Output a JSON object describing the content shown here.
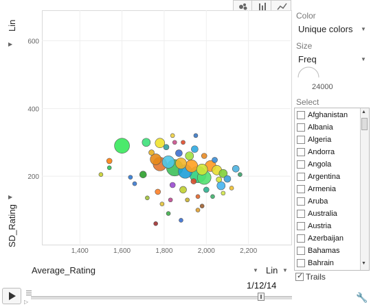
{
  "top_controls": {
    "y_scale": "Lin",
    "x_metric": "Average_Rating",
    "x_scale": "Lin",
    "y_metric": "SD_Rating",
    "chart_buttons": [
      "bubble-chart-icon",
      "bar-chart-icon",
      "line-chart-icon"
    ]
  },
  "right_panel": {
    "color_label": "Color",
    "color_value": "Unique colors",
    "size_label": "Size",
    "size_value": "Freq",
    "size_legend_value": "24000",
    "select_label": "Select",
    "items": [
      "Afghanistan",
      "Albania",
      "Algeria",
      "Andorra",
      "Angola",
      "Argentina",
      "Armenia",
      "Aruba",
      "Australia",
      "Austria",
      "Azerbaijan",
      "Bahamas",
      "Bahrain"
    ],
    "trails_label": "Trails",
    "trails_checked": true
  },
  "player": {
    "date": "1/12/14"
  },
  "chart_data": {
    "type": "scatter",
    "xlabel": "Average_Rating",
    "ylabel": "SD_Rating",
    "xlim": [
      1220,
      2400
    ],
    "ylim": [
      0,
      690
    ],
    "xticks": [
      "1,400",
      "1,600",
      "1,800",
      "2,000",
      "2,200"
    ],
    "xtick_values": [
      1400,
      1600,
      1800,
      2000,
      2200
    ],
    "yticks": [
      "200",
      "400",
      "600"
    ],
    "ytick_values": [
      200,
      400,
      600
    ],
    "points": [
      {
        "x": 1600,
        "y": 290,
        "r": 11,
        "color": "#38e85c"
      },
      {
        "x": 1715,
        "y": 300,
        "r": 6,
        "color": "#3de07a"
      },
      {
        "x": 1780,
        "y": 298,
        "r": 7,
        "color": "#f0e22d"
      },
      {
        "x": 1540,
        "y": 245,
        "r": 4,
        "color": "#ff7f0e"
      },
      {
        "x": 1700,
        "y": 205,
        "r": 5,
        "color": "#2ca02c"
      },
      {
        "x": 1760,
        "y": 250,
        "r": 8,
        "color": "#e58a1a"
      },
      {
        "x": 1780,
        "y": 236,
        "r": 10,
        "color": "#e3772d"
      },
      {
        "x": 1820,
        "y": 242,
        "r": 9,
        "color": "#4ec8e8"
      },
      {
        "x": 1850,
        "y": 225,
        "r": 12,
        "color": "#3ec05a"
      },
      {
        "x": 1880,
        "y": 238,
        "r": 8,
        "color": "#f2b52a"
      },
      {
        "x": 1900,
        "y": 214,
        "r": 10,
        "color": "#1ea0d8"
      },
      {
        "x": 1930,
        "y": 230,
        "r": 9,
        "color": "#ffa020"
      },
      {
        "x": 1960,
        "y": 205,
        "r": 12,
        "color": "#2fd07e"
      },
      {
        "x": 1990,
        "y": 196,
        "r": 10,
        "color": "#53e070"
      },
      {
        "x": 2020,
        "y": 230,
        "r": 8,
        "color": "#ff9a24"
      },
      {
        "x": 2050,
        "y": 218,
        "r": 7,
        "color": "#e6dd31"
      },
      {
        "x": 2080,
        "y": 208,
        "r": 6,
        "color": "#7fd03a"
      },
      {
        "x": 2100,
        "y": 192,
        "r": 5,
        "color": "#3aa0d8"
      },
      {
        "x": 2140,
        "y": 222,
        "r": 5,
        "color": "#4cb3e0"
      },
      {
        "x": 2070,
        "y": 172,
        "r": 6,
        "color": "#46b4f0"
      },
      {
        "x": 1940,
        "y": 185,
        "r": 4,
        "color": "#d84c2a"
      },
      {
        "x": 1890,
        "y": 160,
        "r": 5,
        "color": "#c0d030"
      },
      {
        "x": 1840,
        "y": 174,
        "r": 4,
        "color": "#9a4ad0"
      },
      {
        "x": 1770,
        "y": 154,
        "r": 4,
        "color": "#fd7f26"
      },
      {
        "x": 1720,
        "y": 136,
        "r": 3,
        "color": "#a0c03a"
      },
      {
        "x": 1660,
        "y": 178,
        "r": 3,
        "color": "#3a79d0"
      },
      {
        "x": 1790,
        "y": 118,
        "r": 3,
        "color": "#e2c33a"
      },
      {
        "x": 1820,
        "y": 90,
        "r": 3,
        "color": "#3fae4a"
      },
      {
        "x": 1890,
        "y": 300,
        "r": 3,
        "color": "#e04a2a"
      },
      {
        "x": 1950,
        "y": 320,
        "r": 3,
        "color": "#3a79c6"
      },
      {
        "x": 1850,
        "y": 300,
        "r": 3,
        "color": "#cc4f8c"
      },
      {
        "x": 1990,
        "y": 260,
        "r": 4,
        "color": "#e78a23"
      },
      {
        "x": 2040,
        "y": 248,
        "r": 4,
        "color": "#3a8dd6"
      },
      {
        "x": 2060,
        "y": 190,
        "r": 4,
        "color": "#d0e63a"
      },
      {
        "x": 2000,
        "y": 160,
        "r": 4,
        "color": "#2eb090"
      },
      {
        "x": 1960,
        "y": 140,
        "r": 3,
        "color": "#e2662a"
      },
      {
        "x": 1910,
        "y": 130,
        "r": 3,
        "color": "#c8b030"
      },
      {
        "x": 1980,
        "y": 112,
        "r": 3,
        "color": "#a06030"
      },
      {
        "x": 2030,
        "y": 140,
        "r": 3,
        "color": "#3fb06a"
      },
      {
        "x": 2080,
        "y": 150,
        "r": 3,
        "color": "#d2e64a"
      },
      {
        "x": 2120,
        "y": 165,
        "r": 3,
        "color": "#f0c030"
      },
      {
        "x": 2160,
        "y": 205,
        "r": 3,
        "color": "#3aa06a"
      },
      {
        "x": 1870,
        "y": 268,
        "r": 5,
        "color": "#3c6fd0"
      },
      {
        "x": 1810,
        "y": 286,
        "r": 4,
        "color": "#35a0a0"
      },
      {
        "x": 1740,
        "y": 270,
        "r": 4,
        "color": "#e8b020"
      },
      {
        "x": 1840,
        "y": 320,
        "r": 3,
        "color": "#f0d040"
      },
      {
        "x": 1920,
        "y": 260,
        "r": 6,
        "color": "#a0e040"
      },
      {
        "x": 1980,
        "y": 220,
        "r": 8,
        "color": "#d0e636"
      },
      {
        "x": 1945,
        "y": 280,
        "r": 5,
        "color": "#2da8e0"
      },
      {
        "x": 1830,
        "y": 130,
        "r": 3,
        "color": "#c04a90"
      },
      {
        "x": 1500,
        "y": 205,
        "r": 3,
        "color": "#c8d030"
      },
      {
        "x": 1540,
        "y": 225,
        "r": 3,
        "color": "#2ec05a"
      },
      {
        "x": 1640,
        "y": 197,
        "r": 3,
        "color": "#2d7ad6"
      },
      {
        "x": 1880,
        "y": 70,
        "r": 3,
        "color": "#3a6fd0"
      },
      {
        "x": 1760,
        "y": 60,
        "r": 3,
        "color": "#a03030"
      },
      {
        "x": 1960,
        "y": 100,
        "r": 3,
        "color": "#e0a030"
      }
    ]
  }
}
